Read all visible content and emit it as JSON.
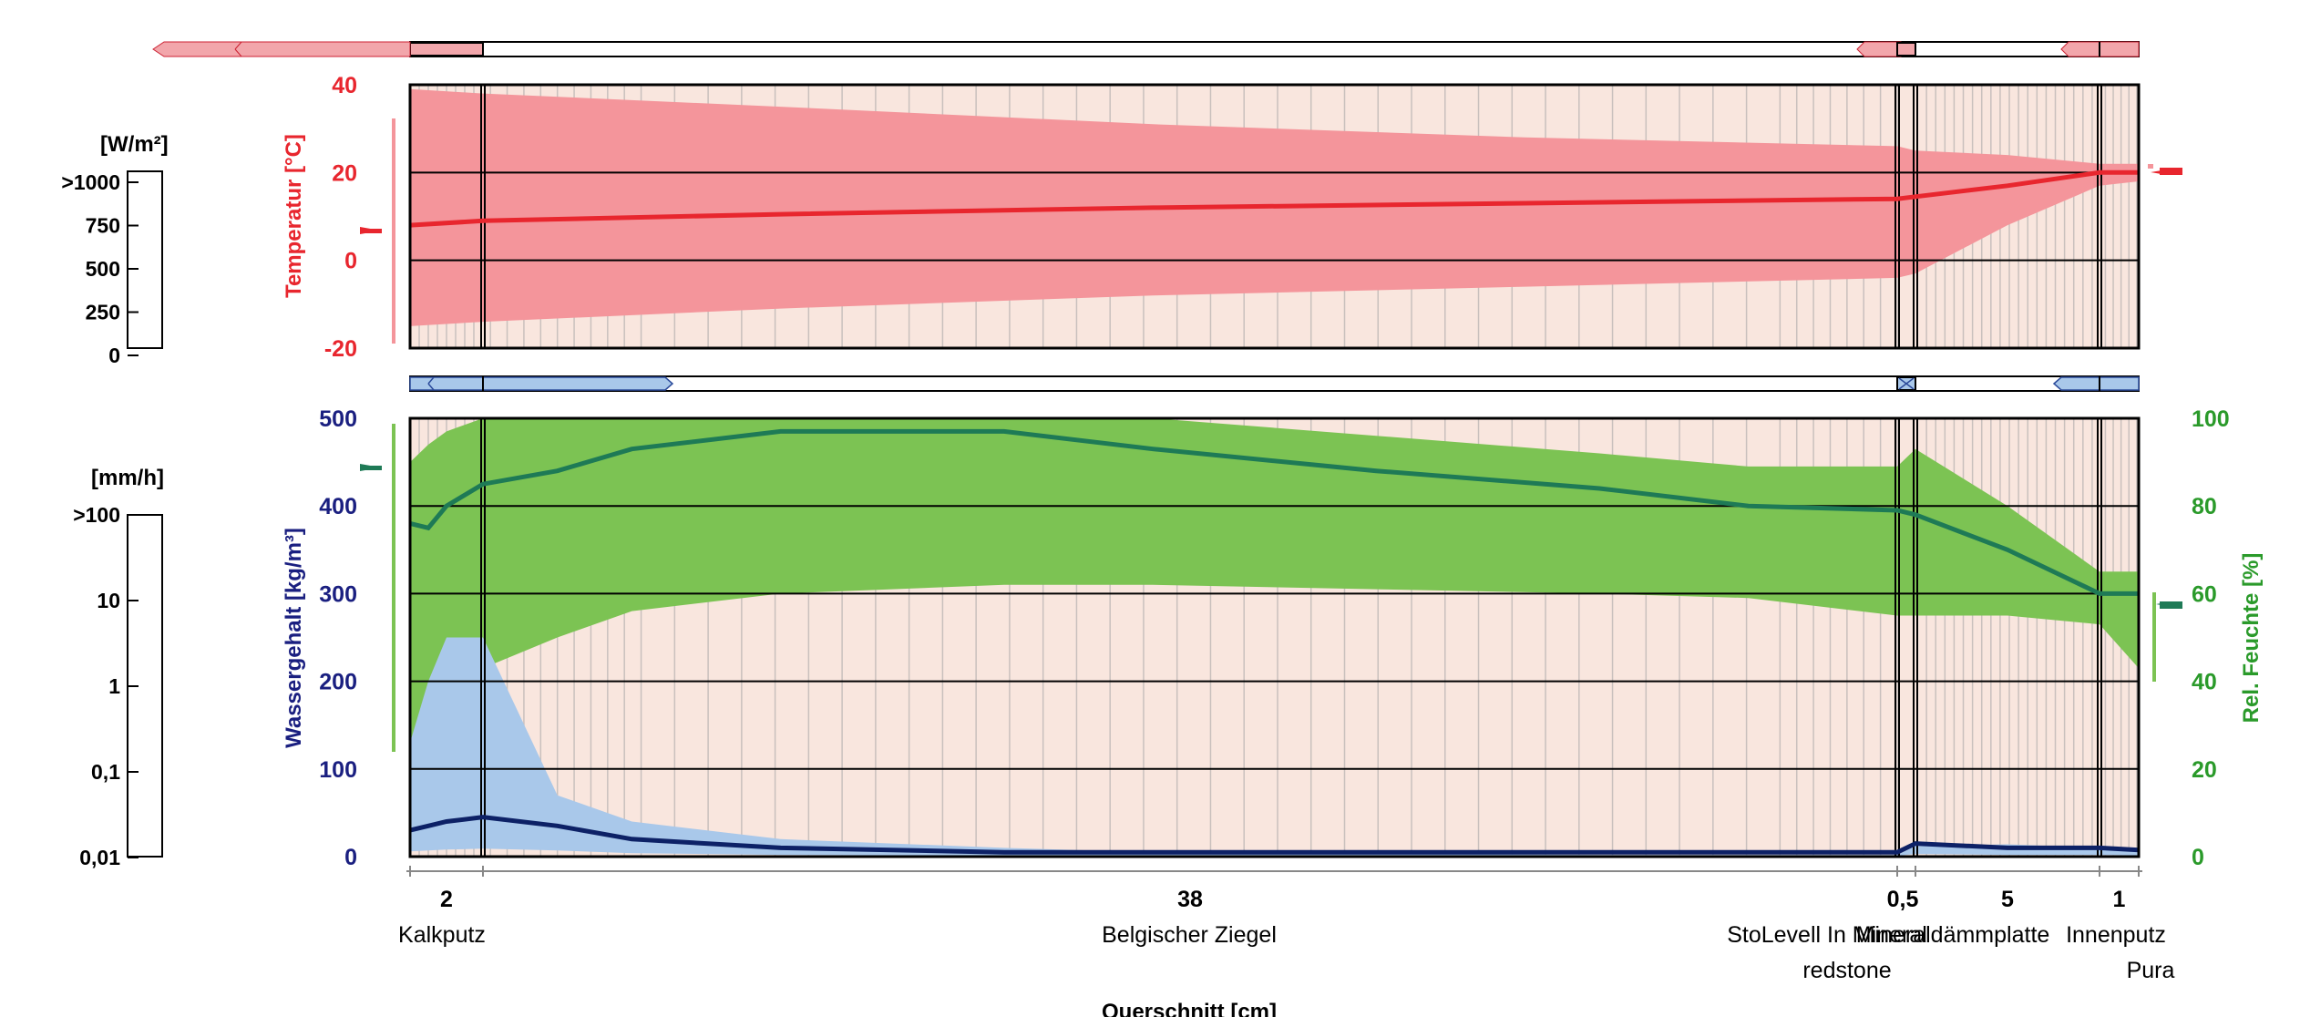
{
  "colors": {
    "temp": "#e8262e",
    "temp_band": "#f4959b",
    "rh": "#1e7a56",
    "rh_band": "#7cc353",
    "water": "#0d2166",
    "water_band": "#a9c8ea",
    "background": "#f9e6de",
    "rh_axis": "#2a9a2a",
    "water_axis": "#1a1f80"
  },
  "scales": {
    "heat_flux": {
      "unit": "[W/m²]",
      "ticks": [
        ">1000",
        "750",
        "500",
        "250",
        "0"
      ]
    },
    "rain": {
      "unit": "[mm/h]",
      "ticks": [
        ">100",
        "10",
        "1",
        "0,1",
        "0,01"
      ]
    }
  },
  "layers": [
    {
      "thickness": "2",
      "name": "Kalkputz",
      "name2": ""
    },
    {
      "thickness": "38",
      "name": "Belgischer Ziegel",
      "name2": ""
    },
    {
      "thickness": "0,5",
      "name": "StoLevell In Mineral",
      "name2": "redstone"
    },
    {
      "thickness": "5",
      "name": "Mineraldämmplatte",
      "name2": ""
    },
    {
      "thickness": "1",
      "name": "Innenputz",
      "name2": "Pura"
    }
  ],
  "xlabel": "Querschnitt [cm]",
  "chart_data": [
    {
      "type": "line",
      "ylabel": "Temperatur [°C]",
      "ylim": [
        -20,
        40
      ],
      "yticks": [
        "40",
        "20",
        "0",
        "-20"
      ],
      "x": [
        0,
        2,
        10,
        20,
        30,
        40,
        40.5,
        43,
        45.5,
        46.5
      ],
      "series": [
        {
          "values": [
            8,
            9,
            10.5,
            12,
            13,
            14,
            14.5,
            17,
            20,
            20
          ]
        },
        {
          "values": [
            39,
            38,
            35,
            31,
            28,
            26,
            25,
            24,
            22,
            22
          ]
        },
        {
          "values": [
            -15,
            -14,
            -11,
            -8,
            -6,
            -4,
            -3,
            8,
            17,
            18
          ]
        }
      ]
    },
    {
      "type": "area",
      "ylabel": "Wassergehalt [kg/m³]",
      "y2label": "Rel. Feuchte [%]",
      "ylim": [
        0,
        500
      ],
      "y2lim": [
        0,
        100
      ],
      "yticks": [
        "500",
        "400",
        "300",
        "200",
        "100",
        "0"
      ],
      "y2ticks": [
        "100",
        "80",
        "60",
        "40",
        "20",
        "0"
      ],
      "x": [
        0,
        0.5,
        1,
        2,
        4,
        6,
        10,
        16,
        20,
        26,
        32,
        36,
        40,
        40.5,
        43,
        45.5,
        46.5
      ],
      "series": [
        {
          "values": [
            76,
            75,
            80,
            85,
            88,
            93,
            97,
            97,
            93,
            88,
            84,
            80,
            79,
            78,
            70,
            60,
            60
          ]
        },
        {
          "values": [
            90,
            94,
            97,
            100,
            100,
            100,
            100,
            100,
            100,
            96,
            92,
            89,
            89,
            93,
            80,
            65,
            65
          ]
        },
        {
          "values": [
            25,
            30,
            38,
            43,
            50,
            56,
            60,
            62,
            62,
            61,
            60,
            59,
            55,
            55,
            55,
            53,
            43
          ]
        },
        {
          "values": [
            6,
            7,
            8,
            9,
            7,
            4,
            2,
            1,
            1,
            1,
            1,
            1,
            1,
            3,
            2,
            2,
            1.5
          ]
        },
        {
          "values": [
            130,
            200,
            250,
            250,
            70,
            40,
            20,
            10,
            5,
            3,
            2,
            2,
            2,
            12,
            14,
            10,
            8
          ]
        }
      ]
    }
  ]
}
